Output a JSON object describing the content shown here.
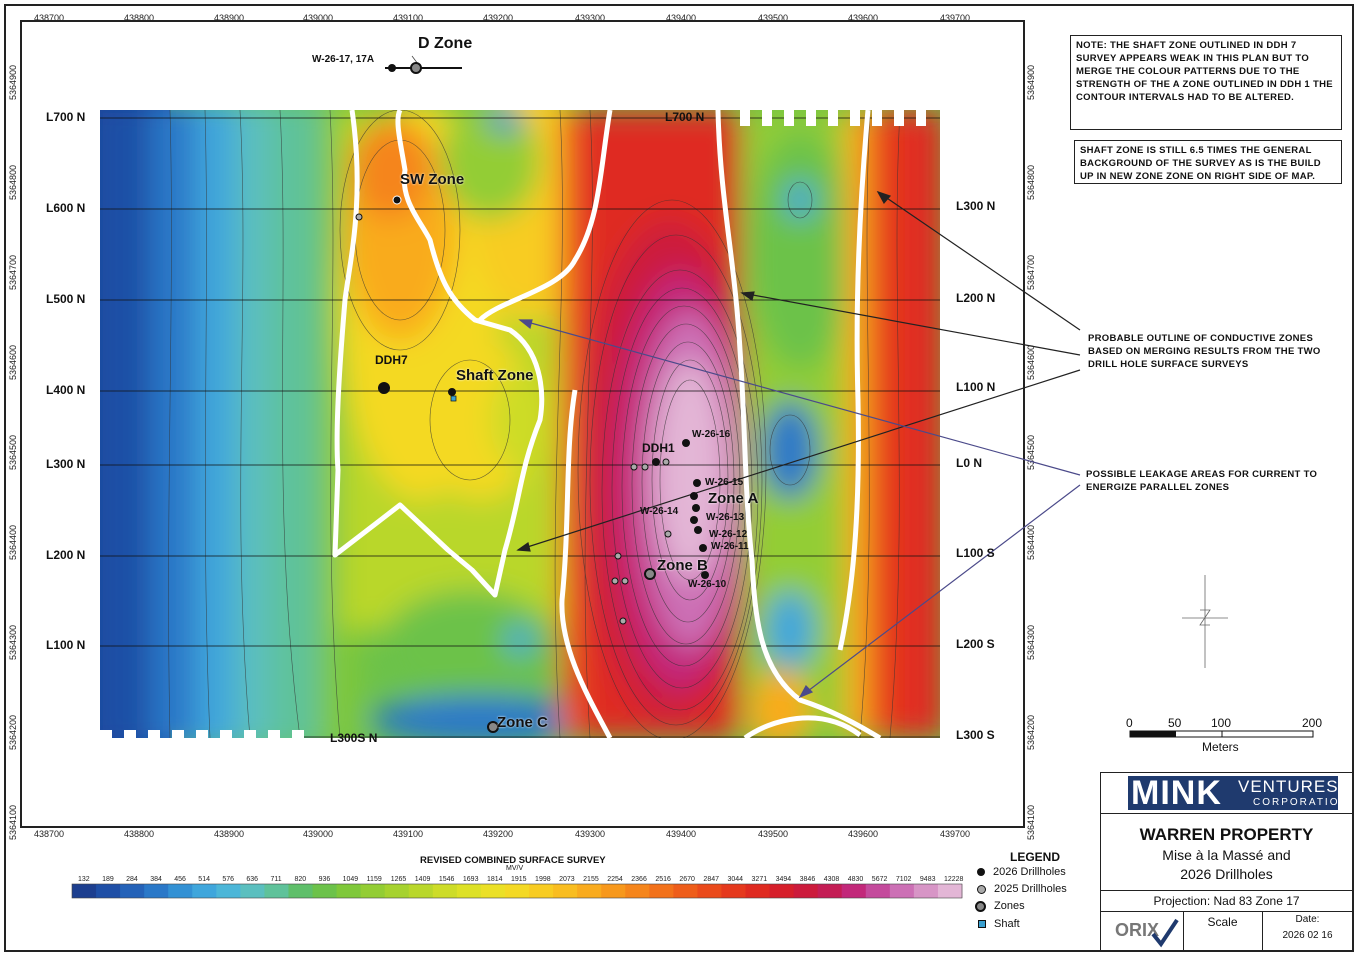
{
  "easting_labels": [
    "438700",
    "438800",
    "438900",
    "439000",
    "439100",
    "439200",
    "439300",
    "439400",
    "439500",
    "439600",
    "439700"
  ],
  "northing_labels": [
    "5364900",
    "5364800",
    "5364700",
    "5364600",
    "5364500",
    "5364400",
    "5364300",
    "5364200",
    "5364100"
  ],
  "left_lines": [
    "L700 N",
    "L600 N",
    "L500 N",
    "L400 N",
    "L300 N",
    "L200 N",
    "L100 N"
  ],
  "right_lines": [
    "L300 N",
    "L200 N",
    "L100 N",
    "L0 N",
    "L100 S",
    "L200 S",
    "L300 S"
  ],
  "inner_labels": {
    "l700n_inner": "L700 N",
    "l300s_inner": "L300S N"
  },
  "zones": {
    "d_zone": "D Zone",
    "sw_zone": "SW Zone",
    "shaft_zone": "Shaft Zone",
    "zone_a": "Zone A",
    "zone_b": "Zone B",
    "zone_c": "Zone C"
  },
  "holes": {
    "w2617": "W-26-17, 17A",
    "ddh7": "DDH7",
    "ddh1": "DDH1",
    "w2616": "W-26-16",
    "w2615": "W-26-15",
    "w2614": "W-26-14",
    "w2613": "W-26-13",
    "w2612": "W-26-12",
    "w2611": "W-26-11",
    "w2610": "W-26-10"
  },
  "notes": {
    "note1": "NOTE: THE SHAFT ZONE OUTLINED IN DDH 7 SURVEY APPEARS WEAK IN THIS PLAN BUT TO MERGE THE COLOUR PATTERNS DUE TO THE STRENGTH OF THE A ZONE OUTLINED IN DDH 1 THE CONTOUR INTERVALS HAD TO BE ALTERED.",
    "note2": "SHAFT ZONE IS STILL 6.5 TIMES THE GENERAL BACKGROUND OF THE SURVEY AS IS THE BUILD UP IN NEW ZONE ZONE ON  RIGHT SIDE OF MAP.",
    "callout1": "PROBABLE OUTLINE OF CONDUCTIVE ZONES BASED ON MERGING RESULTS FROM THE TWO DRILL HOLE SURFACE SURVEYS",
    "callout2": "POSSIBLE LEAKAGE AREAS FOR CURRENT TO ENERGIZE PARALLEL ZONES"
  },
  "scale": {
    "ticks": [
      "0",
      "50",
      "100",
      "200"
    ],
    "unit": "Meters"
  },
  "colorbar": {
    "title": "REVISED COMBINED SURFACE SURVEY",
    "unit": "MV/V",
    "values": [
      "132",
      "189",
      "284",
      "384",
      "456",
      "514",
      "576",
      "636",
      "711",
      "820",
      "936",
      "1049",
      "1159",
      "1265",
      "1409",
      "1546",
      "1693",
      "1814",
      "1915",
      "1998",
      "2073",
      "2155",
      "2254",
      "2366",
      "2516",
      "2670",
      "2847",
      "3044",
      "3271",
      "3494",
      "3846",
      "4308",
      "4830",
      "5672",
      "7102",
      "9483",
      "12228"
    ],
    "colors": [
      "#1d3f8f",
      "#1f4fa6",
      "#2462b8",
      "#2a78c8",
      "#3391d4",
      "#3fa6dc",
      "#4cb6d8",
      "#5bbfbf",
      "#5fc29a",
      "#5fbf6a",
      "#6cc24a",
      "#7fc83a",
      "#93cd34",
      "#a6d22f",
      "#b9d72b",
      "#cddc28",
      "#dde126",
      "#ebe026",
      "#f4d924",
      "#f8cc22",
      "#f9bd20",
      "#f9ab1e",
      "#f7981c",
      "#f5851b",
      "#f2711a",
      "#ee5d1a",
      "#ea4a1b",
      "#e5391d",
      "#df2a20",
      "#d61f2b",
      "#cc1b3c",
      "#c41d55",
      "#c2287a",
      "#c44a9c",
      "#cc70b5",
      "#d795c6",
      "#e3b6d6"
    ]
  },
  "legend": {
    "title": "LEGEND",
    "items": [
      "2026 Drillholes",
      "2025 Drillholes",
      "Zones",
      "Shaft"
    ]
  },
  "title_block": {
    "company_main": "MINK",
    "company_sub1": "VENTURES",
    "company_sub2": "CORPORATION",
    "property": "WARREN PROPERTY",
    "sub1": "Mise à la Massé and",
    "sub2": "2026 Drillholes",
    "projection": "Projection: Nad 83 Zone 17",
    "scale_label": "Scale",
    "date_label": "Date:",
    "date": "2026 02 16",
    "logo_text": "ORIX"
  },
  "colors": {
    "accent": "#1f3a6e",
    "outline": "#ffffff",
    "line": "#222222"
  }
}
